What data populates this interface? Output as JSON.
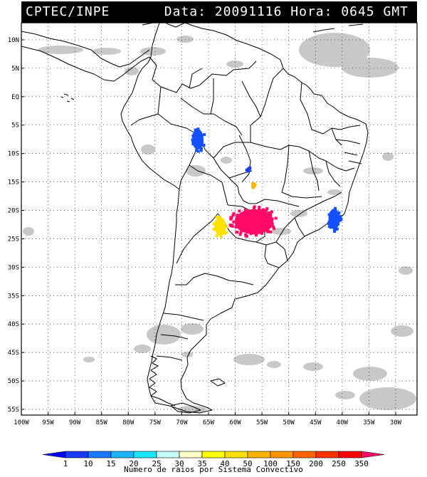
{
  "header": {
    "agency": "CPTEC/INPE",
    "datetime": "Data: 20091116 Hora: 0645 GMT"
  },
  "map": {
    "lat_labels": [
      "10N",
      "5N",
      "EQ",
      "5S",
      "10S",
      "15S",
      "20S",
      "25S",
      "30S",
      "35S",
      "40S",
      "45S",
      "50S",
      "55S"
    ],
    "lat_values": [
      10,
      5,
      0,
      -5,
      -10,
      -15,
      -20,
      -25,
      -30,
      -35,
      -40,
      -45,
      -50,
      -55
    ],
    "lon_labels": [
      "100W",
      "95W",
      "90W",
      "85W",
      "80W",
      "75W",
      "70W",
      "65W",
      "60W",
      "55W",
      "50W",
      "45W",
      "40W",
      "35W",
      "30W"
    ],
    "lon_values": [
      -100,
      -95,
      -90,
      -85,
      -80,
      -75,
      -70,
      -65,
      -60,
      -55,
      -50,
      -45,
      -40,
      -35,
      -30
    ],
    "lon_range": [
      -100,
      -26
    ],
    "lat_range": [
      -56,
      13
    ],
    "grid": true
  },
  "lightning_clusters": [
    {
      "lon": -67.0,
      "lat": -7.5,
      "category": "15",
      "color": "#1450ff"
    },
    {
      "lon": -57.5,
      "lat": -12.8,
      "category": "10",
      "color": "#1a3cff"
    },
    {
      "lon": -56.6,
      "lat": -15.6,
      "category": "50",
      "color": "#ffb400"
    },
    {
      "lon": -62.8,
      "lat": -22.8,
      "category": "40",
      "color": "#ffe100"
    },
    {
      "lon": -56.5,
      "lat": -22.0,
      "category": "350",
      "color": "#ff0a64"
    },
    {
      "lon": -41.5,
      "lat": -21.5,
      "category": "15",
      "color": "#1450ff"
    }
  ],
  "legend": {
    "labels": [
      "1",
      "10",
      "15",
      "20",
      "25",
      "30",
      "35",
      "40",
      "50",
      "100",
      "150",
      "200",
      "250",
      "350"
    ],
    "colors": [
      "#0000ff",
      "#1a3cff",
      "#1a78ff",
      "#1ab4ff",
      "#1ae6ff",
      "#c8ffff",
      "#ffffc8",
      "#ffff00",
      "#ffe100",
      "#ffb400",
      "#ff9600",
      "#ff6400",
      "#ff3200",
      "#ff0000",
      "#ff0a64"
    ],
    "caption": "Numero de raios por Sistema Convectivo"
  }
}
